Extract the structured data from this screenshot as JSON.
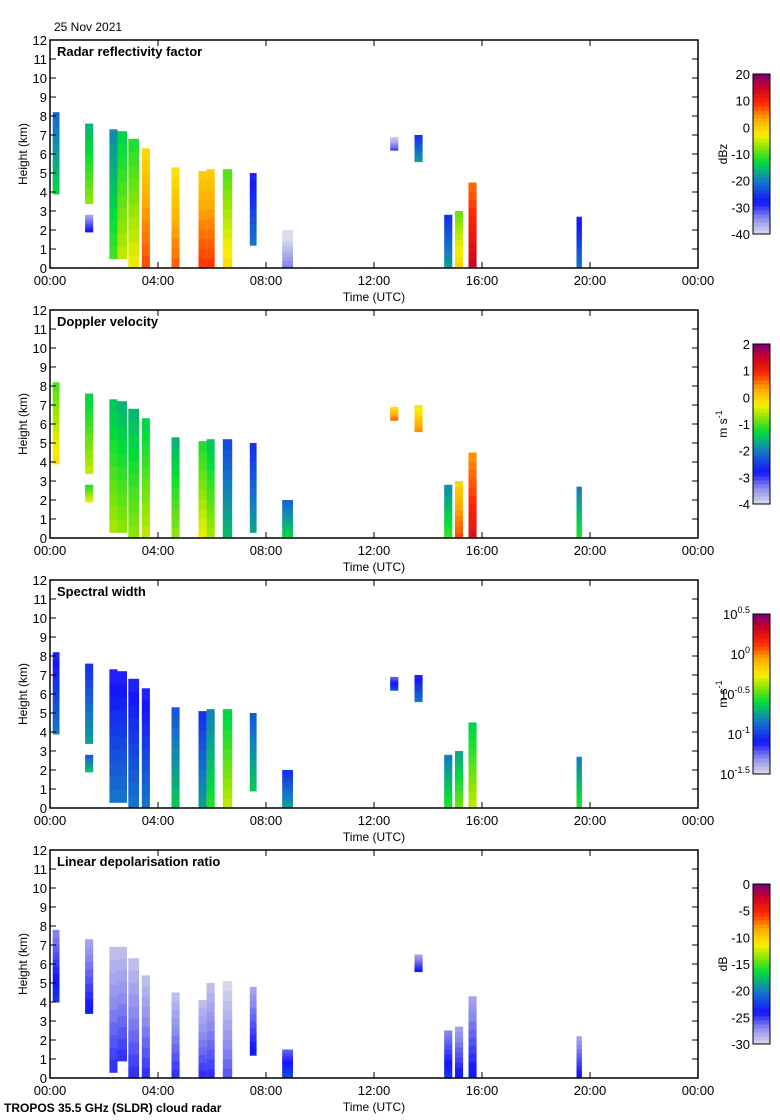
{
  "header": {
    "date": "25 Nov 2021"
  },
  "footer": {
    "instrument": "TROPOS 35.5 GHz (SLDR) cloud radar"
  },
  "chart_data": [
    {
      "type": "heatmap",
      "title": "Radar reflectivity factor",
      "xlabel": "Time (UTC)",
      "ylabel": "Height (km)",
      "x_ticks": [
        "00:00",
        "04:00",
        "08:00",
        "12:00",
        "16:00",
        "20:00",
        "00:00"
      ],
      "xlim_hours": [
        0,
        24
      ],
      "y_ticks": [
        0,
        1,
        2,
        3,
        4,
        5,
        6,
        7,
        8,
        9,
        10,
        11,
        12
      ],
      "ylim": [
        0,
        12
      ],
      "colorbar": {
        "label": "dBz",
        "range": [
          -40,
          20
        ],
        "ticks": [
          "20",
          "10",
          "0",
          "-10",
          "-20",
          "-30",
          "-40"
        ]
      },
      "cloud_columns": [
        {
          "t0": 0.1,
          "t1": 0.35,
          "z0": 3.9,
          "z1": 8.2,
          "v": -18
        },
        {
          "t0": 1.3,
          "t1": 1.6,
          "z0": 3.4,
          "z1": 7.6,
          "v": -12
        },
        {
          "t0": 1.3,
          "t1": 1.6,
          "z0": 1.9,
          "z1": 2.8,
          "v": -32
        },
        {
          "t0": 2.2,
          "t1": 2.5,
          "z0": 0.5,
          "z1": 7.3,
          "v": -15
        },
        {
          "t0": 2.5,
          "t1": 2.85,
          "z0": 0.5,
          "z1": 7.2,
          "v": -10
        },
        {
          "t0": 2.9,
          "t1": 3.3,
          "z0": 0.0,
          "z1": 6.8,
          "v": -8
        },
        {
          "t0": 3.4,
          "t1": 3.7,
          "z0": 0.0,
          "z1": 6.3,
          "v": 3
        },
        {
          "t0": 4.5,
          "t1": 4.8,
          "z0": 0.0,
          "z1": 5.3,
          "v": 2
        },
        {
          "t0": 5.5,
          "t1": 5.8,
          "z0": 0.0,
          "z1": 5.1,
          "v": 4
        },
        {
          "t0": 5.8,
          "t1": 6.1,
          "z0": 0.0,
          "z1": 5.2,
          "v": 4
        },
        {
          "t0": 6.4,
          "t1": 6.75,
          "z0": 0.0,
          "z1": 5.2,
          "v": -6
        },
        {
          "t0": 7.4,
          "t1": 7.65,
          "z0": 1.2,
          "z1": 5.0,
          "v": -25
        },
        {
          "t0": 8.6,
          "t1": 9.0,
          "z0": 0.0,
          "z1": 2.0,
          "v": -38
        },
        {
          "t0": 12.6,
          "t1": 12.9,
          "z0": 6.2,
          "z1": 6.9,
          "v": -35
        },
        {
          "t0": 13.5,
          "t1": 13.8,
          "z0": 5.6,
          "z1": 7.0,
          "v": -22
        },
        {
          "t0": 14.6,
          "t1": 14.9,
          "z0": 0.0,
          "z1": 2.8,
          "v": -22
        },
        {
          "t0": 15.0,
          "t1": 15.3,
          "z0": 0.0,
          "z1": 3.0,
          "v": -5
        },
        {
          "t0": 15.5,
          "t1": 15.8,
          "z0": 0.0,
          "z1": 4.5,
          "v": 10
        },
        {
          "t0": 19.5,
          "t1": 19.7,
          "z0": 0.0,
          "z1": 2.7,
          "v": -25
        }
      ]
    },
    {
      "type": "heatmap",
      "title": "Doppler velocity",
      "xlabel": "Time (UTC)",
      "ylabel": "Height (km)",
      "x_ticks": [
        "00:00",
        "04:00",
        "08:00",
        "12:00",
        "16:00",
        "20:00",
        "00:00"
      ],
      "xlim_hours": [
        0,
        24
      ],
      "y_ticks": [
        0,
        1,
        2,
        3,
        4,
        5,
        6,
        7,
        8,
        9,
        10,
        11,
        12
      ],
      "ylim": [
        0,
        12
      ],
      "colorbar": {
        "label": "m s-1",
        "range": [
          -4,
          2
        ],
        "ticks": [
          "2",
          "1",
          "0",
          "-1",
          "-2",
          "-3",
          "-4"
        ]
      },
      "cloud_columns": [
        {
          "t0": 0.1,
          "t1": 0.35,
          "z0": 3.9,
          "z1": 8.2,
          "v": -0.6
        },
        {
          "t0": 1.3,
          "t1": 1.6,
          "z0": 3.4,
          "z1": 7.6,
          "v": -1.0
        },
        {
          "t0": 1.3,
          "t1": 1.6,
          "z0": 1.9,
          "z1": 2.8,
          "v": -0.8
        },
        {
          "t0": 2.2,
          "t1": 2.5,
          "z0": 0.3,
          "z1": 7.3,
          "v": -1.1
        },
        {
          "t0": 2.5,
          "t1": 2.85,
          "z0": 0.3,
          "z1": 7.2,
          "v": -1.2
        },
        {
          "t0": 2.9,
          "t1": 3.3,
          "z0": 0.0,
          "z1": 6.8,
          "v": -1.2
        },
        {
          "t0": 3.4,
          "t1": 3.7,
          "z0": 0.0,
          "z1": 6.3,
          "v": -1.0
        },
        {
          "t0": 4.5,
          "t1": 4.8,
          "z0": 0.0,
          "z1": 5.3,
          "v": -1.2
        },
        {
          "t0": 5.5,
          "t1": 5.8,
          "z0": 0.0,
          "z1": 5.1,
          "v": -0.8
        },
        {
          "t0": 5.8,
          "t1": 6.1,
          "z0": 0.0,
          "z1": 5.2,
          "v": -1.1
        },
        {
          "t0": 6.4,
          "t1": 6.75,
          "z0": 0.0,
          "z1": 5.2,
          "v": -2.0
        },
        {
          "t0": 7.4,
          "t1": 7.65,
          "z0": 0.3,
          "z1": 5.0,
          "v": -2.2
        },
        {
          "t0": 8.6,
          "t1": 9.0,
          "z0": 0.0,
          "z1": 2.0,
          "v": -1.8
        },
        {
          "t0": 12.6,
          "t1": 12.9,
          "z0": 6.2,
          "z1": 6.9,
          "v": 0.2
        },
        {
          "t0": 13.5,
          "t1": 13.8,
          "z0": 5.6,
          "z1": 7.0,
          "v": 0.0
        },
        {
          "t0": 14.6,
          "t1": 14.9,
          "z0": 0.0,
          "z1": 2.8,
          "v": -1.5
        },
        {
          "t0": 15.0,
          "t1": 15.3,
          "z0": 0.0,
          "z1": 3.0,
          "v": 0.3
        },
        {
          "t0": 15.5,
          "t1": 15.8,
          "z0": 0.0,
          "z1": 4.5,
          "v": 0.8
        },
        {
          "t0": 19.5,
          "t1": 19.7,
          "z0": 0.0,
          "z1": 2.7,
          "v": -1.6
        }
      ]
    },
    {
      "type": "heatmap",
      "title": "Spectral width",
      "xlabel": "Time (UTC)",
      "ylabel": "Height (km)",
      "x_ticks": [
        "00:00",
        "04:00",
        "08:00",
        "12:00",
        "16:00",
        "20:00",
        "00:00"
      ],
      "xlim_hours": [
        0,
        24
      ],
      "y_ticks": [
        0,
        1,
        2,
        3,
        4,
        5,
        6,
        7,
        8,
        9,
        10,
        11,
        12
      ],
      "ylim": [
        0,
        12
      ],
      "colorbar": {
        "label": "m s-1",
        "scale": "log10",
        "range": [
          -1.5,
          0.5
        ],
        "ticks": [
          "10^0.5",
          "10^0",
          "10^-0.5",
          "10^-1",
          "10^-1.5"
        ]
      },
      "cloud_columns": [
        {
          "t0": 0.1,
          "t1": 0.35,
          "z0": 3.9,
          "z1": 8.2,
          "v": -1.0
        },
        {
          "t0": 1.3,
          "t1": 1.6,
          "z0": 3.4,
          "z1": 7.6,
          "v": -0.9
        },
        {
          "t0": 1.3,
          "t1": 1.6,
          "z0": 1.9,
          "z1": 2.8,
          "v": -0.8
        },
        {
          "t0": 2.2,
          "t1": 2.5,
          "z0": 0.3,
          "z1": 7.3,
          "v": -1.0
        },
        {
          "t0": 2.5,
          "t1": 2.85,
          "z0": 0.3,
          "z1": 7.2,
          "v": -1.0
        },
        {
          "t0": 2.9,
          "t1": 3.3,
          "z0": 0.0,
          "z1": 6.8,
          "v": -1.0
        },
        {
          "t0": 3.4,
          "t1": 3.7,
          "z0": 0.0,
          "z1": 6.3,
          "v": -1.0
        },
        {
          "t0": 4.5,
          "t1": 4.8,
          "z0": 0.0,
          "z1": 5.3,
          "v": -0.8
        },
        {
          "t0": 5.5,
          "t1": 5.8,
          "z0": 0.0,
          "z1": 5.1,
          "v": -0.9
        },
        {
          "t0": 5.8,
          "t1": 6.1,
          "z0": 0.0,
          "z1": 5.2,
          "v": -0.7
        },
        {
          "t0": 6.4,
          "t1": 6.75,
          "z0": 0.0,
          "z1": 5.2,
          "v": -0.5
        },
        {
          "t0": 7.4,
          "t1": 7.65,
          "z0": 0.9,
          "z1": 5.0,
          "v": -0.8
        },
        {
          "t0": 8.6,
          "t1": 9.0,
          "z0": 0.0,
          "z1": 2.0,
          "v": -0.9
        },
        {
          "t0": 12.6,
          "t1": 12.9,
          "z0": 6.2,
          "z1": 6.9,
          "v": -1.1
        },
        {
          "t0": 13.5,
          "t1": 13.8,
          "z0": 5.6,
          "z1": 7.0,
          "v": -1.0
        },
        {
          "t0": 14.6,
          "t1": 14.9,
          "z0": 0.0,
          "z1": 2.8,
          "v": -0.7
        },
        {
          "t0": 15.0,
          "t1": 15.3,
          "z0": 0.0,
          "z1": 3.0,
          "v": -0.6
        },
        {
          "t0": 15.5,
          "t1": 15.8,
          "z0": 0.0,
          "z1": 4.5,
          "v": -0.5
        },
        {
          "t0": 19.5,
          "t1": 19.7,
          "z0": 0.0,
          "z1": 2.7,
          "v": -0.7
        }
      ]
    },
    {
      "type": "heatmap",
      "title": "Linear depolarisation ratio",
      "xlabel": "Time (UTC)",
      "ylabel": "Height (km)",
      "x_ticks": [
        "00:00",
        "04:00",
        "08:00",
        "12:00",
        "16:00",
        "20:00",
        "00:00"
      ],
      "xlim_hours": [
        0,
        24
      ],
      "y_ticks": [
        0,
        1,
        2,
        3,
        4,
        5,
        6,
        7,
        8,
        9,
        10,
        11,
        12
      ],
      "ylim": [
        0,
        12
      ],
      "colorbar": {
        "label": "dB",
        "range": [
          -30,
          0
        ],
        "ticks": [
          "0",
          "-5",
          "-10",
          "-15",
          "-20",
          "-25",
          "-30"
        ]
      },
      "cloud_columns": [
        {
          "t0": 0.1,
          "t1": 0.35,
          "z0": 4.0,
          "z1": 7.8,
          "v": -25
        },
        {
          "t0": 1.3,
          "t1": 1.6,
          "z0": 3.4,
          "z1": 7.3,
          "v": -26
        },
        {
          "t0": 2.2,
          "t1": 2.5,
          "z0": 0.3,
          "z1": 6.9,
          "v": -27
        },
        {
          "t0": 2.5,
          "t1": 2.85,
          "z0": 0.9,
          "z1": 6.9,
          "v": -27
        },
        {
          "t0": 2.9,
          "t1": 3.3,
          "z0": 0.0,
          "z1": 6.3,
          "v": -27
        },
        {
          "t0": 3.4,
          "t1": 3.7,
          "z0": 0.0,
          "z1": 5.4,
          "v": -27
        },
        {
          "t0": 4.5,
          "t1": 4.8,
          "z0": 0.0,
          "z1": 4.5,
          "v": -27
        },
        {
          "t0": 5.5,
          "t1": 5.8,
          "z0": 0.0,
          "z1": 4.1,
          "v": -27
        },
        {
          "t0": 5.8,
          "t1": 6.1,
          "z0": 0.0,
          "z1": 5.0,
          "v": -27
        },
        {
          "t0": 6.4,
          "t1": 6.75,
          "z0": 0.0,
          "z1": 5.1,
          "v": -28
        },
        {
          "t0": 7.4,
          "t1": 7.65,
          "z0": 1.2,
          "z1": 4.8,
          "v": -26
        },
        {
          "t0": 8.6,
          "t1": 9.0,
          "z0": 0.0,
          "z1": 1.5,
          "v": -24
        },
        {
          "t0": 13.5,
          "t1": 13.8,
          "z0": 5.6,
          "z1": 6.5,
          "v": -26
        },
        {
          "t0": 14.6,
          "t1": 14.9,
          "z0": 0.0,
          "z1": 2.5,
          "v": -25
        },
        {
          "t0": 15.0,
          "t1": 15.3,
          "z0": 0.0,
          "z1": 2.7,
          "v": -26
        },
        {
          "t0": 15.5,
          "t1": 15.8,
          "z0": 0.0,
          "z1": 4.3,
          "v": -26
        },
        {
          "t0": 19.5,
          "t1": 19.7,
          "z0": 0.0,
          "z1": 2.2,
          "v": -26
        }
      ]
    }
  ]
}
